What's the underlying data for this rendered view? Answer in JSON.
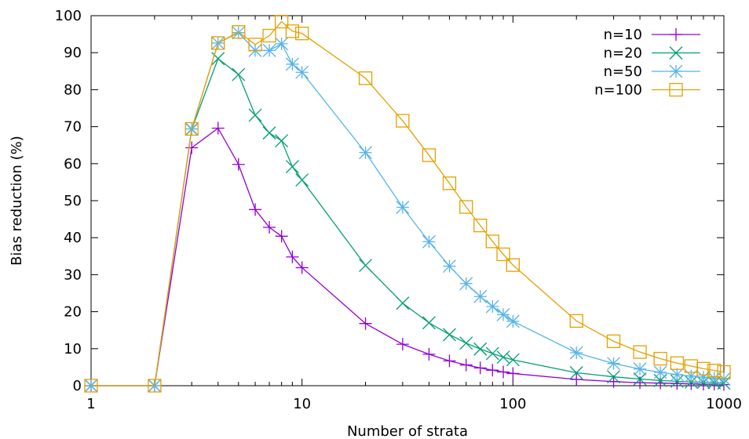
{
  "chart_data": {
    "type": "line",
    "xlabel": "Number of strata",
    "ylabel": "Bias reduction (%)",
    "xscale": "log",
    "xlim": [
      1,
      1000
    ],
    "ylim": [
      0,
      100
    ],
    "xticks": [
      1,
      10,
      100,
      1000
    ],
    "yticks": [
      0,
      10,
      20,
      30,
      40,
      50,
      60,
      70,
      80,
      90,
      100
    ],
    "grid": false,
    "legend_position": "top-right",
    "series": [
      {
        "name": "n=10",
        "color": "#9400d3",
        "marker": "plus",
        "x": [
          1,
          2,
          3,
          4,
          5,
          6,
          7,
          8,
          9,
          10,
          20,
          30,
          40,
          50,
          60,
          70,
          80,
          90,
          100,
          200,
          300,
          400,
          500,
          600,
          700,
          800,
          900,
          1000
        ],
        "y": [
          0,
          0,
          64.3,
          69.6,
          59.8,
          47.6,
          42.8,
          40.4,
          34.8,
          31.9,
          16.8,
          11.2,
          8.5,
          6.7,
          5.6,
          4.8,
          4.2,
          3.7,
          3.3,
          1.7,
          1.1,
          0.8,
          0.7,
          0.6,
          0.5,
          0.4,
          0.4,
          0.3
        ]
      },
      {
        "name": "n=20",
        "color": "#009e73",
        "marker": "cross",
        "x": [
          1,
          2,
          3,
          4,
          5,
          6,
          7,
          8,
          9,
          10,
          20,
          30,
          40,
          50,
          60,
          70,
          80,
          90,
          100,
          200,
          300,
          400,
          500,
          600,
          700,
          800,
          900,
          1000
        ],
        "y": [
          0,
          0,
          69.3,
          88.4,
          84.1,
          73.1,
          68.3,
          66.2,
          59.2,
          55.6,
          32.5,
          22.3,
          17.0,
          13.8,
          11.5,
          9.9,
          8.7,
          7.7,
          7.0,
          3.5,
          2.4,
          1.8,
          1.4,
          1.2,
          1.0,
          0.9,
          0.8,
          0.7
        ]
      },
      {
        "name": "n=50",
        "color": "#56b4e9",
        "marker": "star",
        "x": [
          1,
          2,
          3,
          4,
          5,
          6,
          7,
          8,
          9,
          10,
          20,
          30,
          40,
          50,
          60,
          70,
          80,
          90,
          100,
          200,
          300,
          400,
          500,
          600,
          700,
          800,
          900,
          1000
        ],
        "y": [
          0,
          0,
          69.4,
          92.6,
          95.4,
          90.6,
          90.6,
          92.4,
          86.9,
          84.7,
          63.0,
          48.2,
          38.9,
          32.3,
          27.6,
          24.1,
          21.4,
          19.2,
          17.4,
          8.9,
          6.0,
          4.5,
          3.6,
          3.0,
          2.6,
          2.3,
          2.0,
          1.8
        ]
      },
      {
        "name": "n=100",
        "color": "#e69f00",
        "marker": "square",
        "x": [
          1,
          2,
          3,
          4,
          5,
          6,
          7,
          8,
          9,
          10,
          20,
          30,
          40,
          50,
          60,
          70,
          80,
          90,
          100,
          200,
          300,
          400,
          500,
          600,
          700,
          800,
          900,
          1000
        ],
        "y": [
          0,
          0,
          69.4,
          92.6,
          95.6,
          92.2,
          94.6,
          98.4,
          95.8,
          95.2,
          83.1,
          71.6,
          62.3,
          54.7,
          48.3,
          43.3,
          39.0,
          35.5,
          32.6,
          17.5,
          12.0,
          9.1,
          7.3,
          6.1,
          5.3,
          4.6,
          4.1,
          3.7
        ]
      }
    ]
  }
}
